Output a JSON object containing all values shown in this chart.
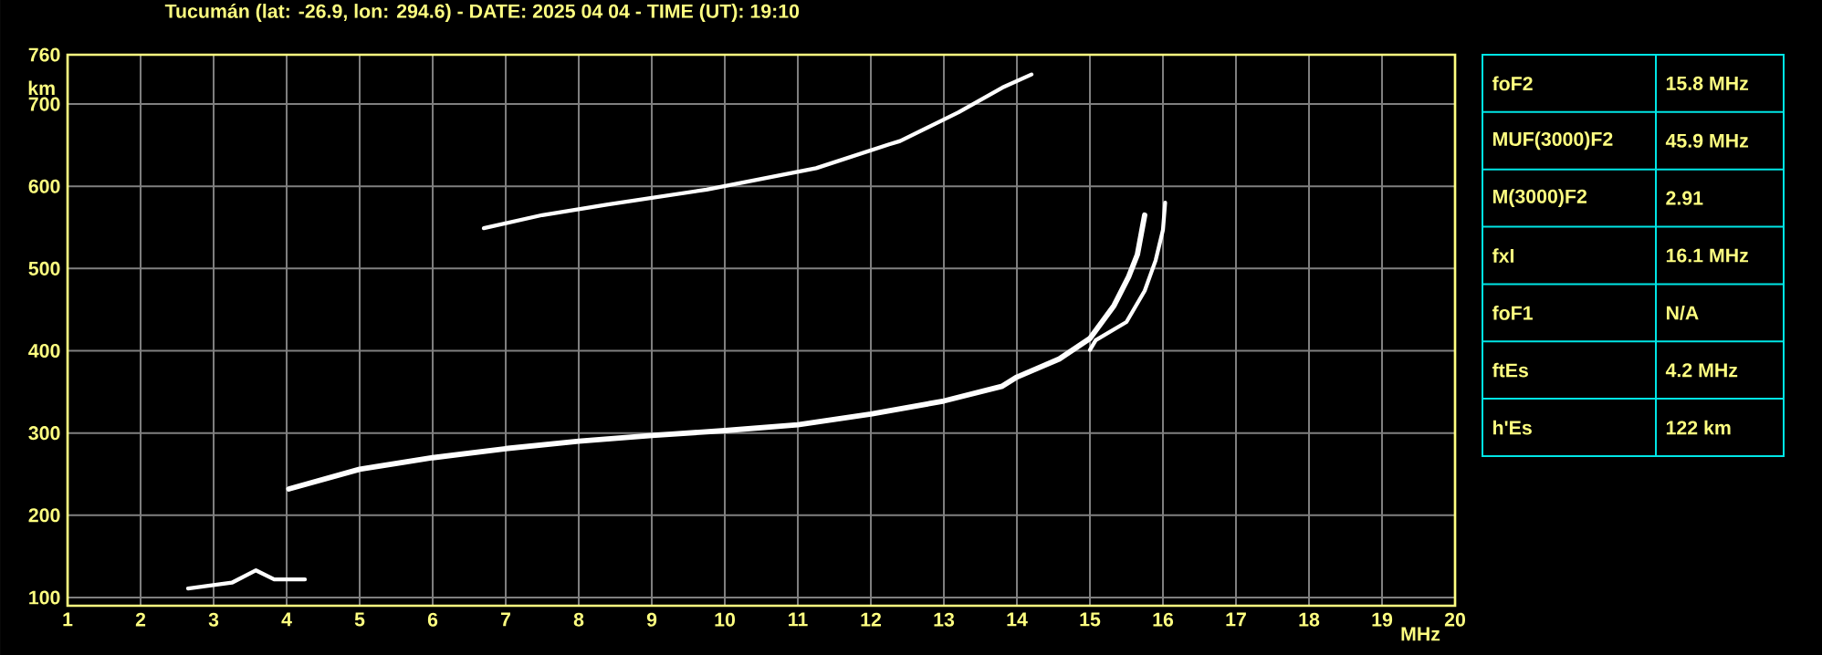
{
  "chart_data": {
    "type": "line",
    "title": "Tucumán (lat: -26.9, lon: 294.6) - DATE: 2025 04 04 - TIME (UT): 19:10",
    "xlabel": "MHz",
    "ylabel": "km",
    "xlim": [
      1,
      20
    ],
    "xticks": [
      1,
      2,
      3,
      4,
      5,
      6,
      7,
      8,
      9,
      10,
      11,
      12,
      13,
      14,
      15,
      16,
      17,
      18,
      19,
      20
    ],
    "ylim": [
      90,
      760
    ],
    "yticks": [
      100,
      200,
      300,
      400,
      500,
      600,
      700,
      760
    ],
    "grid": true,
    "marker": "none",
    "line_style": "solid",
    "series": [
      {
        "color": "#ffffff",
        "x": [
          4.03,
          5,
          6,
          7,
          8,
          9,
          10,
          11,
          12,
          13,
          13.8,
          14.0,
          14.58,
          15.0,
          15.33,
          15.53,
          15.65,
          15.75
        ],
        "values": [
          232,
          256,
          270,
          281,
          290,
          297,
          303,
          310,
          323,
          339,
          357,
          368,
          390,
          415,
          455,
          490,
          517,
          565
        ]
      },
      {
        "color": "#ffffff",
        "x": [
          15.0,
          15.08,
          15.5,
          15.75,
          15.9,
          16.0,
          16.03
        ],
        "values": [
          401,
          413,
          435,
          473,
          510,
          547,
          580
        ]
      },
      {
        "color": "#ffffff",
        "x": [
          6.7,
          7.5,
          8.4,
          9.75,
          11.25,
          12.25,
          12.4,
          13.2,
          13.8,
          14.2
        ],
        "values": [
          549,
          565,
          578,
          596,
          622,
          651,
          655,
          690,
          720,
          736
        ]
      },
      {
        "color": "#ffffff",
        "x": [
          2.65,
          3.25,
          3.58,
          3.83,
          4.25
        ],
        "values": [
          111,
          118,
          133,
          122,
          122
        ]
      }
    ],
    "annotations": [
      "foF2",
      "15.8 MHz",
      "MUF(3000)F2",
      "45.9 MHz",
      "M(3000)F2",
      "2.91",
      "fxI",
      "16.1 MHz",
      "foF1",
      "N/A",
      "ftEs",
      "4.2 MHz",
      "h'Es",
      "122 km"
    ]
  }
}
